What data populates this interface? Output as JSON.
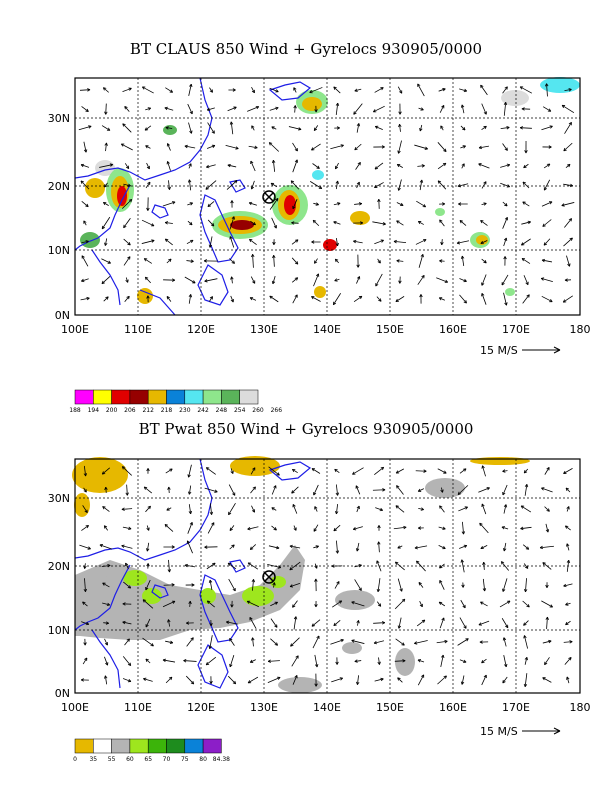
{
  "panel1": {
    "title": "BT CLAUS 850 Wind + Gyrelocs 930905/0000",
    "x_ticks": [
      "100E",
      "110E",
      "120E",
      "130E",
      "140E",
      "150E",
      "160E",
      "170E",
      "180"
    ],
    "y_ticks": [
      "0N",
      "10N",
      "20N",
      "30N"
    ],
    "scale_label": "15 M/S",
    "colorbar": {
      "labels": [
        "188",
        "194",
        "200",
        "206",
        "212",
        "218",
        "230",
        "242",
        "248",
        "254",
        "260",
        "266"
      ],
      "colors": [
        "#ff00ff",
        "#ffff00",
        "#e00000",
        "#960000",
        "#e6b800",
        "#0a82d8",
        "#55e6f0",
        "#8ee68c",
        "#5ab45a",
        "#dcdcdc"
      ]
    }
  },
  "panel2": {
    "title": "BT Pwat 850 Wind + Gyrelocs 930905/0000",
    "x_ticks": [
      "100E",
      "110E",
      "120E",
      "130E",
      "140E",
      "150E",
      "160E",
      "170E",
      "180"
    ],
    "y_ticks": [
      "0N",
      "10N",
      "20N",
      "30N"
    ],
    "scale_label": "15 M/S",
    "colorbar": {
      "labels": [
        "0",
        "35",
        "55",
        "60",
        "65",
        "70",
        "75",
        "80",
        "84.38"
      ],
      "colors": [
        "#e6b800",
        "#ffffff",
        "#b4b4b4",
        "#9ee61e",
        "#3cb40a",
        "#1e8c1e",
        "#0a82d8",
        "#8c1ec8"
      ]
    }
  },
  "gyre_location": {
    "lon": 130.5,
    "lat": 18.3
  },
  "colors": {
    "coastline": "#1e1ee6"
  }
}
